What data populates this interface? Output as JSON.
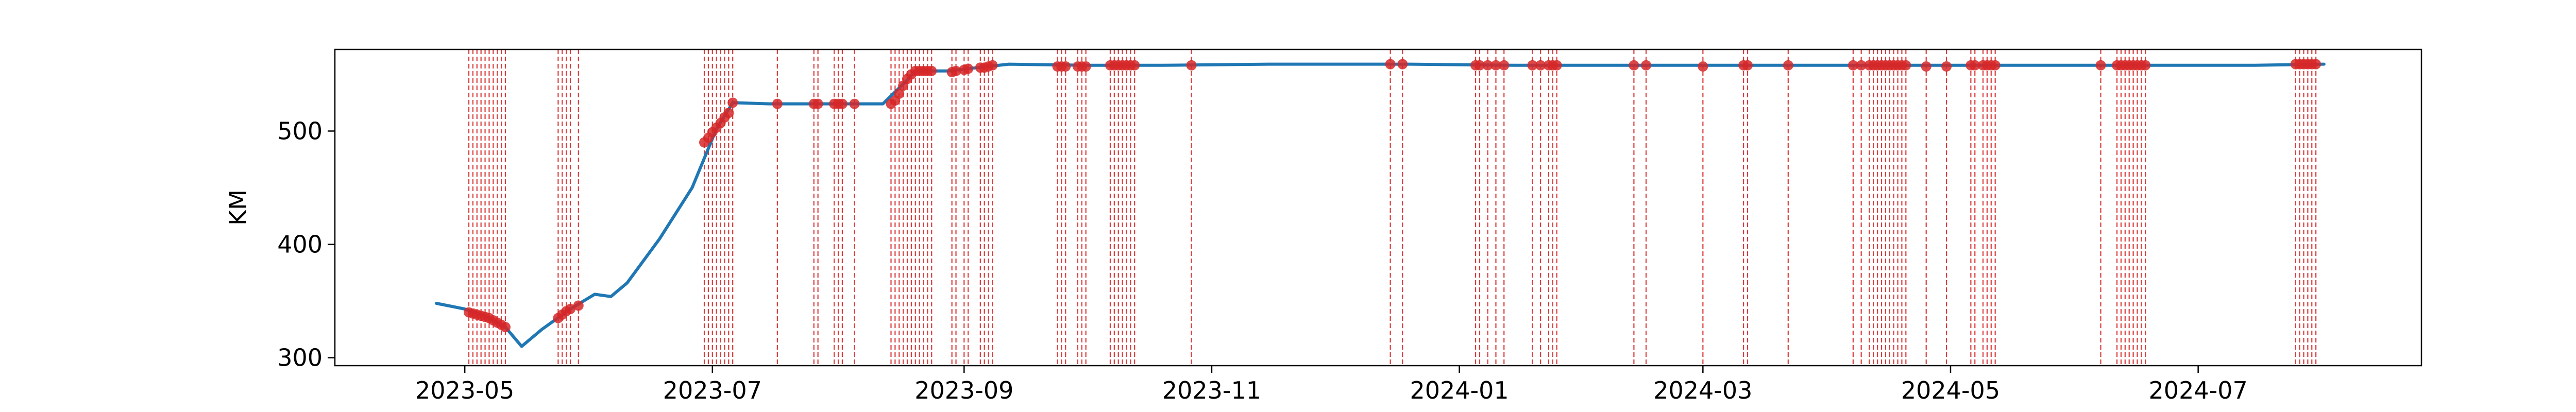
{
  "chart_data": {
    "type": "line",
    "title": "",
    "xlabel": "",
    "ylabel": "KM",
    "x_range": [
      "2023-03-30",
      "2024-08-25"
    ],
    "ylim": [
      293,
      572
    ],
    "grid": false,
    "colors": {
      "line": "#1f77b4",
      "event": "#d62728"
    },
    "x_ticks": [
      {
        "date": "2023-05-01",
        "label": "2023-05"
      },
      {
        "date": "2023-07-01",
        "label": "2023-07"
      },
      {
        "date": "2023-09-01",
        "label": "2023-09"
      },
      {
        "date": "2023-11-01",
        "label": "2023-11"
      },
      {
        "date": "2024-01-01",
        "label": "2024-01"
      },
      {
        "date": "2024-03-01",
        "label": "2024-03"
      },
      {
        "date": "2024-05-01",
        "label": "2024-05"
      },
      {
        "date": "2024-07-01",
        "label": "2024-07"
      }
    ],
    "y_ticks": [
      300,
      400,
      500
    ],
    "series": [
      {
        "points": [
          [
            "2023-04-24",
            348
          ],
          [
            "2023-05-01",
            343
          ],
          [
            "2023-05-07",
            335
          ],
          [
            "2023-05-11",
            327
          ],
          [
            "2023-05-15",
            310
          ],
          [
            "2023-05-20",
            325
          ],
          [
            "2023-05-27",
            343
          ],
          [
            "2023-06-02",
            356
          ],
          [
            "2023-06-06",
            354
          ],
          [
            "2023-06-10",
            366
          ],
          [
            "2023-06-18",
            405
          ],
          [
            "2023-06-26",
            450
          ],
          [
            "2023-07-02",
            502
          ],
          [
            "2023-07-06",
            525
          ],
          [
            "2023-07-15",
            524
          ],
          [
            "2023-08-01",
            524
          ],
          [
            "2023-08-12",
            524
          ],
          [
            "2023-08-18",
            545
          ],
          [
            "2023-08-20",
            553
          ],
          [
            "2023-08-28",
            553
          ],
          [
            "2023-09-07",
            557
          ],
          [
            "2023-09-12",
            559
          ],
          [
            "2023-10-01",
            558
          ],
          [
            "2023-10-20",
            558
          ],
          [
            "2023-11-15",
            559
          ],
          [
            "2023-12-20",
            559
          ],
          [
            "2024-01-15",
            558
          ],
          [
            "2024-02-15",
            558
          ],
          [
            "2024-03-15",
            558
          ],
          [
            "2024-04-15",
            558
          ],
          [
            "2024-05-15",
            558
          ],
          [
            "2024-06-15",
            558
          ],
          [
            "2024-07-15",
            558
          ],
          [
            "2024-08-01",
            559
          ]
        ]
      }
    ],
    "events": [
      {
        "date": "2023-05-02",
        "value": 340
      },
      {
        "date": "2023-05-03",
        "value": 339
      },
      {
        "date": "2023-05-04",
        "value": 338
      },
      {
        "date": "2023-05-05",
        "value": 337
      },
      {
        "date": "2023-05-06",
        "value": 336
      },
      {
        "date": "2023-05-07",
        "value": 335
      },
      {
        "date": "2023-05-08",
        "value": 333
      },
      {
        "date": "2023-05-09",
        "value": 331
      },
      {
        "date": "2023-05-10",
        "value": 329
      },
      {
        "date": "2023-05-11",
        "value": 327
      },
      {
        "date": "2023-05-24",
        "value": 335
      },
      {
        "date": "2023-05-25",
        "value": 338
      },
      {
        "date": "2023-05-26",
        "value": 341
      },
      {
        "date": "2023-05-27",
        "value": 343
      },
      {
        "date": "2023-05-29",
        "value": 346
      },
      {
        "date": "2023-06-29",
        "value": 490
      },
      {
        "date": "2023-06-30",
        "value": 494
      },
      {
        "date": "2023-07-01",
        "value": 499
      },
      {
        "date": "2023-07-02",
        "value": 503
      },
      {
        "date": "2023-07-03",
        "value": 507
      },
      {
        "date": "2023-07-04",
        "value": 512
      },
      {
        "date": "2023-07-05",
        "value": 516
      },
      {
        "date": "2023-07-06",
        "value": 525
      },
      {
        "date": "2023-07-17",
        "value": 524
      },
      {
        "date": "2023-07-26",
        "value": 524
      },
      {
        "date": "2023-07-27",
        "value": 524
      },
      {
        "date": "2023-07-31",
        "value": 524
      },
      {
        "date": "2023-08-01",
        "value": 524
      },
      {
        "date": "2023-08-02",
        "value": 524
      },
      {
        "date": "2023-08-05",
        "value": 524
      },
      {
        "date": "2023-08-14",
        "value": 524
      },
      {
        "date": "2023-08-15",
        "value": 527
      },
      {
        "date": "2023-08-16",
        "value": 533
      },
      {
        "date": "2023-08-17",
        "value": 540
      },
      {
        "date": "2023-08-18",
        "value": 546
      },
      {
        "date": "2023-08-19",
        "value": 550
      },
      {
        "date": "2023-08-20",
        "value": 553
      },
      {
        "date": "2023-08-21",
        "value": 553
      },
      {
        "date": "2023-08-22",
        "value": 553
      },
      {
        "date": "2023-08-23",
        "value": 553
      },
      {
        "date": "2023-08-24",
        "value": 553
      },
      {
        "date": "2023-08-29",
        "value": 552
      },
      {
        "date": "2023-08-30",
        "value": 553
      },
      {
        "date": "2023-09-01",
        "value": 554
      },
      {
        "date": "2023-09-02",
        "value": 555
      },
      {
        "date": "2023-09-05",
        "value": 556
      },
      {
        "date": "2023-09-06",
        "value": 556
      },
      {
        "date": "2023-09-07",
        "value": 557
      },
      {
        "date": "2023-09-08",
        "value": 558
      },
      {
        "date": "2023-09-24",
        "value": 557
      },
      {
        "date": "2023-09-25",
        "value": 557
      },
      {
        "date": "2023-09-26",
        "value": 557
      },
      {
        "date": "2023-09-29",
        "value": 557
      },
      {
        "date": "2023-09-30",
        "value": 557
      },
      {
        "date": "2023-10-01",
        "value": 557
      },
      {
        "date": "2023-10-07",
        "value": 558
      },
      {
        "date": "2023-10-08",
        "value": 558
      },
      {
        "date": "2023-10-09",
        "value": 558
      },
      {
        "date": "2023-10-10",
        "value": 558
      },
      {
        "date": "2023-10-11",
        "value": 558
      },
      {
        "date": "2023-10-12",
        "value": 558
      },
      {
        "date": "2023-10-13",
        "value": 558
      },
      {
        "date": "2023-10-27",
        "value": 558
      },
      {
        "date": "2023-12-15",
        "value": 559
      },
      {
        "date": "2023-12-18",
        "value": 559
      },
      {
        "date": "2024-01-05",
        "value": 558
      },
      {
        "date": "2024-01-06",
        "value": 558
      },
      {
        "date": "2024-01-08",
        "value": 558
      },
      {
        "date": "2024-01-10",
        "value": 558
      },
      {
        "date": "2024-01-12",
        "value": 558
      },
      {
        "date": "2024-01-19",
        "value": 558
      },
      {
        "date": "2024-01-21",
        "value": 558
      },
      {
        "date": "2024-01-23",
        "value": 558
      },
      {
        "date": "2024-01-24",
        "value": 558
      },
      {
        "date": "2024-01-25",
        "value": 558
      },
      {
        "date": "2024-02-13",
        "value": 558
      },
      {
        "date": "2024-02-16",
        "value": 558
      },
      {
        "date": "2024-03-01",
        "value": 557
      },
      {
        "date": "2024-03-11",
        "value": 558
      },
      {
        "date": "2024-03-12",
        "value": 558
      },
      {
        "date": "2024-03-22",
        "value": 558
      },
      {
        "date": "2024-04-07",
        "value": 558
      },
      {
        "date": "2024-04-09",
        "value": 558
      },
      {
        "date": "2024-04-11",
        "value": 558
      },
      {
        "date": "2024-04-12",
        "value": 558
      },
      {
        "date": "2024-04-13",
        "value": 558
      },
      {
        "date": "2024-04-14",
        "value": 558
      },
      {
        "date": "2024-04-15",
        "value": 558
      },
      {
        "date": "2024-04-16",
        "value": 558
      },
      {
        "date": "2024-04-17",
        "value": 558
      },
      {
        "date": "2024-04-18",
        "value": 558
      },
      {
        "date": "2024-04-19",
        "value": 558
      },
      {
        "date": "2024-04-20",
        "value": 558
      },
      {
        "date": "2024-04-25",
        "value": 557
      },
      {
        "date": "2024-04-30",
        "value": 557
      },
      {
        "date": "2024-05-06",
        "value": 558
      },
      {
        "date": "2024-05-07",
        "value": 558
      },
      {
        "date": "2024-05-09",
        "value": 558
      },
      {
        "date": "2024-05-10",
        "value": 558
      },
      {
        "date": "2024-05-11",
        "value": 558
      },
      {
        "date": "2024-05-12",
        "value": 558
      },
      {
        "date": "2024-06-07",
        "value": 558
      },
      {
        "date": "2024-06-11",
        "value": 558
      },
      {
        "date": "2024-06-12",
        "value": 558
      },
      {
        "date": "2024-06-13",
        "value": 558
      },
      {
        "date": "2024-06-14",
        "value": 558
      },
      {
        "date": "2024-06-15",
        "value": 558
      },
      {
        "date": "2024-06-16",
        "value": 558
      },
      {
        "date": "2024-06-17",
        "value": 558
      },
      {
        "date": "2024-06-18",
        "value": 558
      },
      {
        "date": "2024-07-25",
        "value": 559
      },
      {
        "date": "2024-07-26",
        "value": 559
      },
      {
        "date": "2024-07-27",
        "value": 559
      },
      {
        "date": "2024-07-28",
        "value": 559
      },
      {
        "date": "2024-07-29",
        "value": 559
      },
      {
        "date": "2024-07-30",
        "value": 559
      }
    ]
  }
}
